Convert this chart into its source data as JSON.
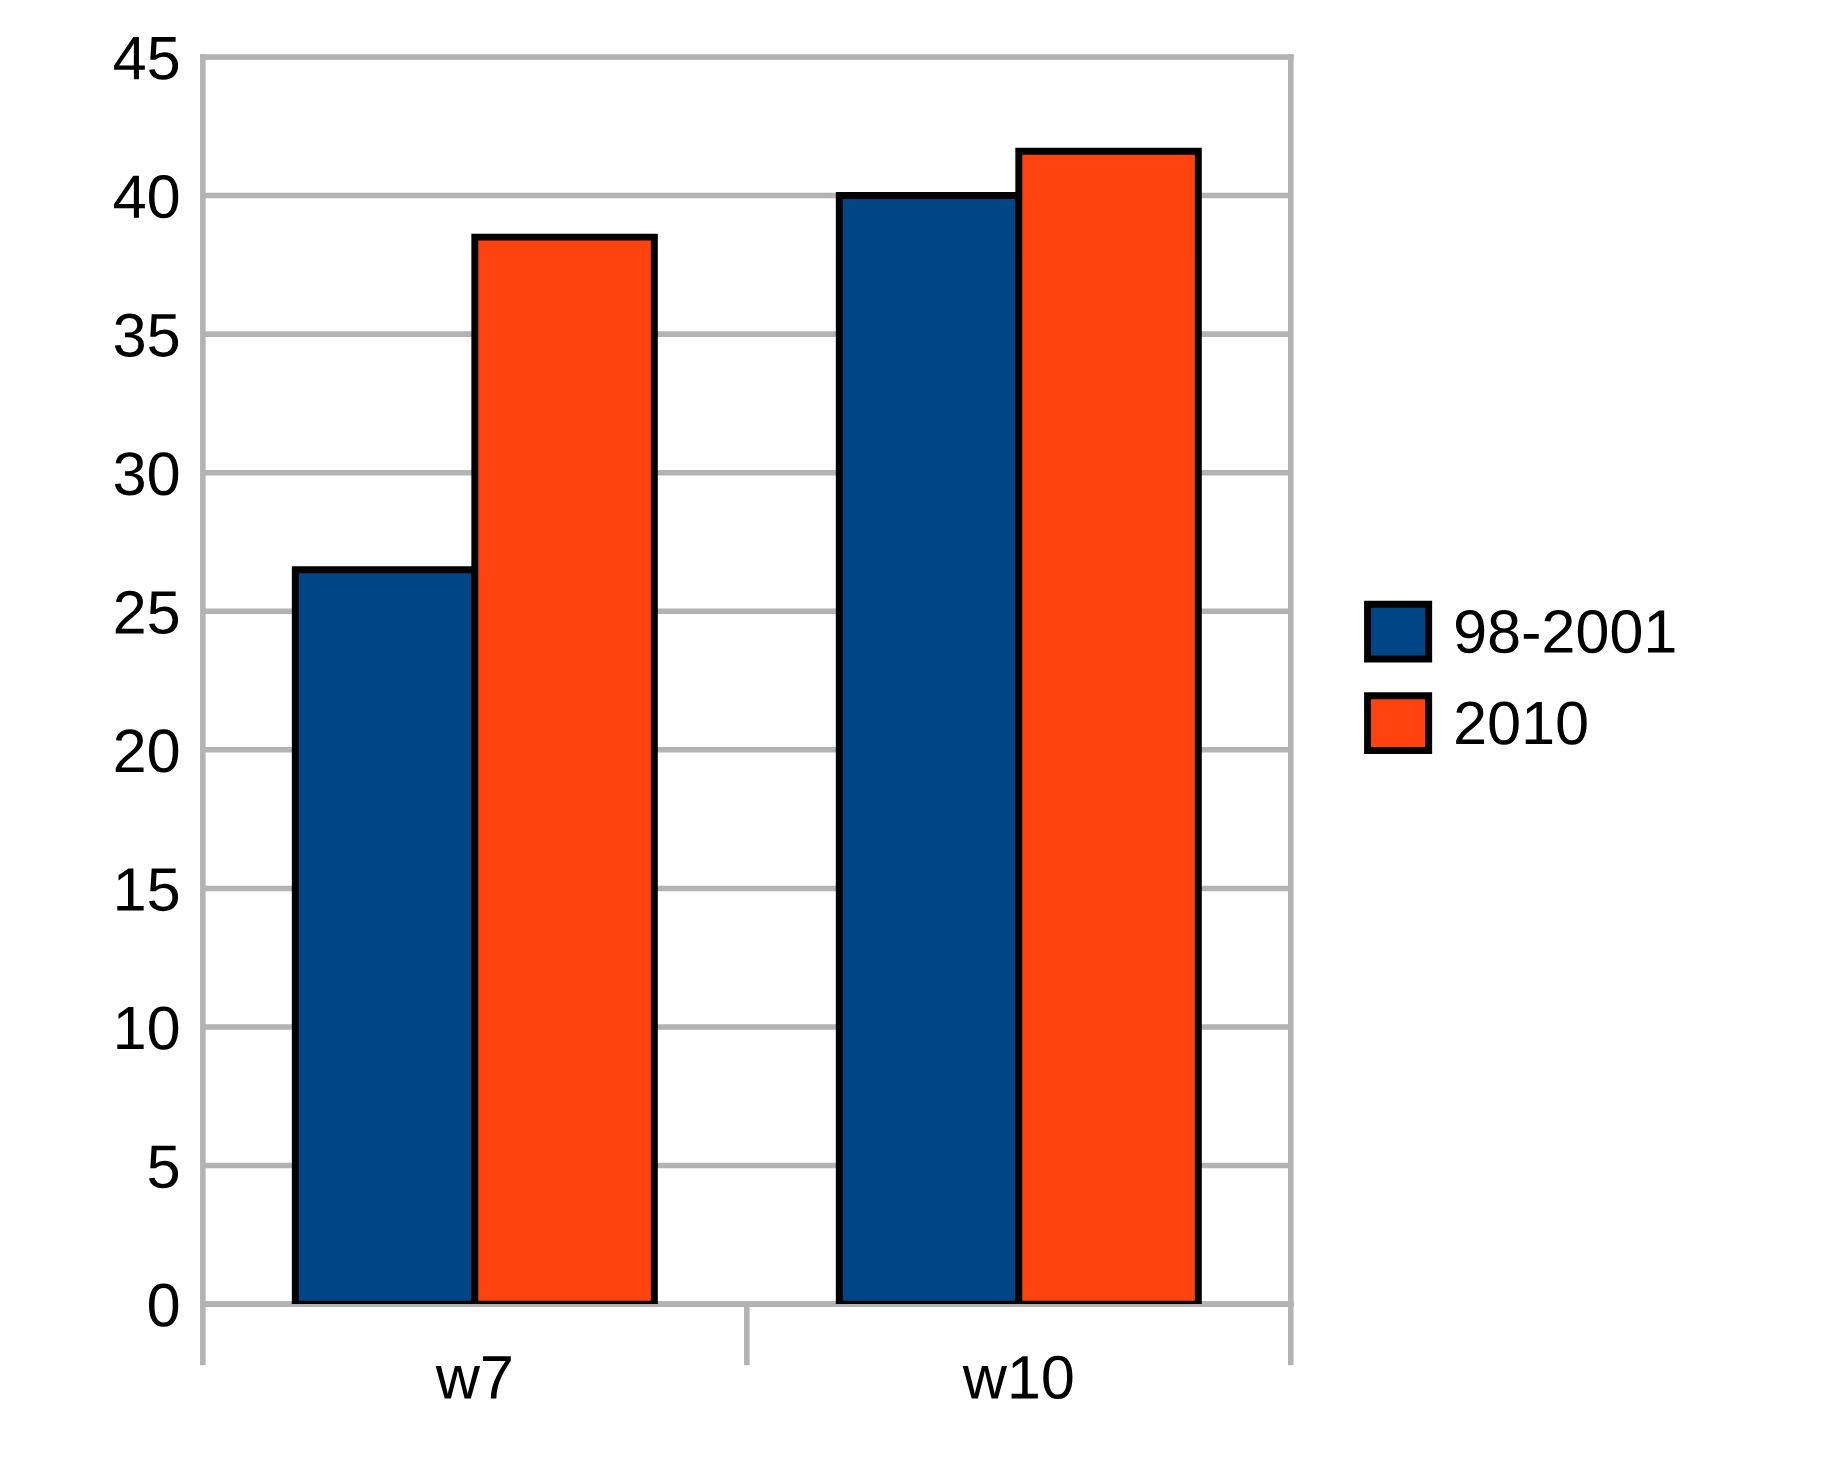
{
  "chart_data": {
    "type": "bar",
    "categories": [
      "w7",
      "w10"
    ],
    "series": [
      {
        "name": "98-2001",
        "color": "#004586",
        "values": [
          26.5,
          40.0
        ]
      },
      {
        "name": "2010",
        "color": "#ff420e",
        "values": [
          38.5,
          41.6
        ]
      }
    ],
    "ylim": [
      0,
      45
    ],
    "yticks": [
      0,
      5,
      10,
      15,
      20,
      25,
      30,
      35,
      40,
      45
    ],
    "grid": "y",
    "legend": "right"
  }
}
